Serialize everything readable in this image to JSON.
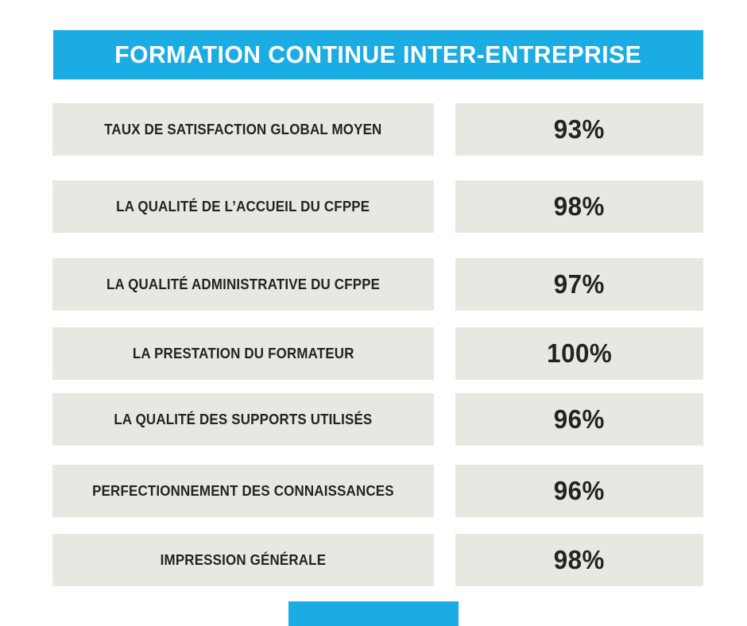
{
  "header": {
    "title": "FORMATION CONTINUE INTER-ENTREPRISE"
  },
  "rows": [
    {
      "label": "TAUX DE SATISFACTION GLOBAL MOYEN",
      "value": "93%"
    },
    {
      "label": "LA QUALITÉ DE L’ACCUEIL DU CFPPE",
      "value": "98%"
    },
    {
      "label": "LA QUALITÉ ADMINISTRATIVE DU CFPPE",
      "value": "97%"
    },
    {
      "label": "LA PRESTATION DU FORMATEUR",
      "value": "100%"
    },
    {
      "label": "LA QUALITÉ DES SUPPORTS UTILISÉS",
      "value": "96%"
    },
    {
      "label": "PERFECTIONNEMENT DES CONNAISSANCES",
      "value": "96%"
    },
    {
      "label": "IMPRESSION GÉNÉRALE",
      "value": "98%"
    }
  ],
  "colors": {
    "accent_blue": "#1BACE4",
    "box_gray": "#E8E7E2",
    "text_dark": "#232321",
    "background": "#FFFFFF"
  },
  "chart_data": {
    "type": "table",
    "title": "FORMATION CONTINUE INTER-ENTREPRISE",
    "categories": [
      "TAUX DE SATISFACTION GLOBAL MOYEN",
      "LA QUALITÉ DE L’ACCUEIL DU CFPPE",
      "LA QUALITÉ ADMINISTRATIVE DU CFPPE",
      "LA PRESTATION DU FORMATEUR",
      "LA QUALITÉ DES SUPPORTS UTILISÉS",
      "PERFECTIONNEMENT DES CONNAISSANCES",
      "IMPRESSION GÉNÉRALE"
    ],
    "values": [
      93,
      98,
      97,
      100,
      96,
      96,
      98
    ],
    "unit": "%"
  }
}
